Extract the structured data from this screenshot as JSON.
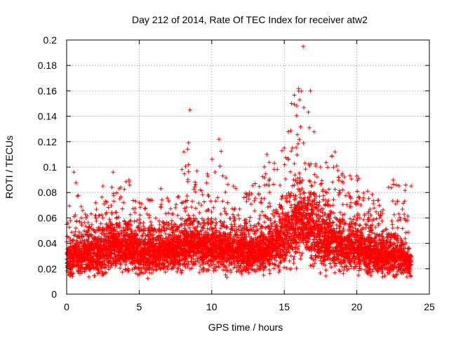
{
  "chart_data": {
    "type": "scatter",
    "title": "Day 212 of 2014, Rate Of TEC Index for receiver atw2",
    "xlabel": "GPS time / hours",
    "ylabel": "ROTI / TECUs",
    "xlim": [
      0,
      25
    ],
    "ylim": [
      0,
      0.2
    ],
    "x_ticks": [
      0,
      5,
      10,
      15,
      20,
      25
    ],
    "y_ticks": [
      0,
      0.02,
      0.04,
      0.06,
      0.08,
      0.1,
      0.12,
      0.14,
      0.16,
      0.18,
      0.2
    ],
    "x_tick_labels": [
      "0",
      "5",
      "10",
      "15",
      "20",
      "25"
    ],
    "y_tick_labels": [
      "0",
      "0.02",
      "0.04",
      "0.06",
      "0.08",
      "0.1",
      "0.12",
      "0.14",
      "0.16",
      "0.18",
      "0.2"
    ],
    "grid": true,
    "marker": "+",
    "color": "#ff0000",
    "x_range_of_data_hours": [
      0,
      23.75
    ],
    "series": [
      {
        "name": "ROTI",
        "envelope_note": "dense scatter; values listed as [hour, typical_low, typical_high, peak]",
        "profile": [
          [
            0.0,
            0.01,
            0.04,
            0.055
          ],
          [
            0.5,
            0.01,
            0.045,
            0.096
          ],
          [
            1.0,
            0.01,
            0.045,
            0.069
          ],
          [
            2.0,
            0.01,
            0.05,
            0.072
          ],
          [
            2.5,
            0.01,
            0.05,
            0.085
          ],
          [
            3.2,
            0.012,
            0.055,
            0.096
          ],
          [
            4.3,
            0.012,
            0.055,
            0.09
          ],
          [
            5.0,
            0.01,
            0.05,
            0.072
          ],
          [
            6.5,
            0.012,
            0.05,
            0.083
          ],
          [
            7.5,
            0.012,
            0.05,
            0.068
          ],
          [
            8.5,
            0.015,
            0.06,
            0.145
          ],
          [
            9.2,
            0.012,
            0.055,
            0.082
          ],
          [
            10.5,
            0.012,
            0.055,
            0.122
          ],
          [
            11.5,
            0.012,
            0.05,
            0.085
          ],
          [
            13.0,
            0.01,
            0.05,
            0.087
          ],
          [
            13.8,
            0.012,
            0.055,
            0.11
          ],
          [
            15.0,
            0.012,
            0.07,
            0.115
          ],
          [
            15.5,
            0.015,
            0.08,
            0.15
          ],
          [
            16.3,
            0.015,
            0.09,
            0.195
          ],
          [
            16.8,
            0.015,
            0.085,
            0.16
          ],
          [
            17.5,
            0.012,
            0.065,
            0.1
          ],
          [
            18.5,
            0.012,
            0.06,
            0.112
          ],
          [
            19.0,
            0.012,
            0.055,
            0.095
          ],
          [
            20.0,
            0.012,
            0.055,
            0.093
          ],
          [
            21.5,
            0.01,
            0.045,
            0.074
          ],
          [
            22.5,
            0.01,
            0.045,
            0.09
          ],
          [
            23.75,
            0.01,
            0.035,
            0.085
          ]
        ]
      }
    ]
  }
}
